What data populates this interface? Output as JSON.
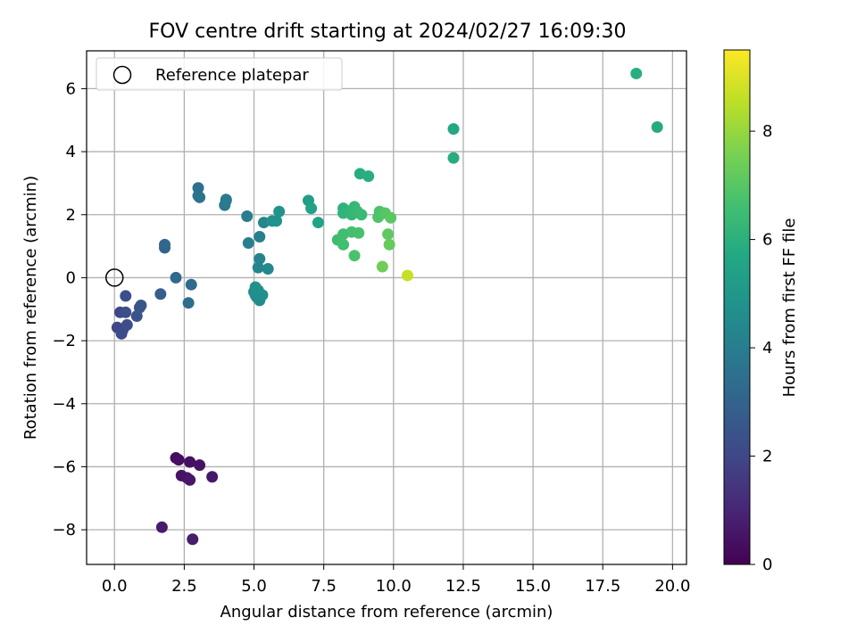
{
  "chart_data": {
    "type": "scatter",
    "title": "FOV centre drift starting at 2024/02/27 16:09:30",
    "xlabel": "Angular distance from reference (arcmin)",
    "ylabel": "Rotation from reference (arcmin)",
    "xlim": [
      -1.0,
      20.5
    ],
    "ylim": [
      -9.1,
      7.2
    ],
    "xticks": [
      0.0,
      2.5,
      5.0,
      7.5,
      10.0,
      12.5,
      15.0,
      17.5,
      20.0
    ],
    "xtick_labels": [
      "0.0",
      "2.5",
      "5.0",
      "7.5",
      "10.0",
      "12.5",
      "15.0",
      "17.5",
      "20.0"
    ],
    "yticks": [
      -8,
      -6,
      -4,
      -2,
      0,
      2,
      4,
      6
    ],
    "ytick_labels": [
      "−8",
      "−6",
      "−4",
      "−2",
      "0",
      "2",
      "4",
      "6"
    ],
    "grid": true,
    "legend": {
      "placement": "top-left",
      "entries": [
        "Reference platepar"
      ]
    },
    "reference_point": {
      "x": 0,
      "y": 0,
      "marker": "hollow-circle"
    },
    "colorbar": {
      "label": "Hours from first FF file",
      "colormap": "viridis",
      "range": [
        0,
        9.5
      ],
      "ticks": [
        0,
        2,
        4,
        6,
        8
      ],
      "tick_labels": [
        "0",
        "2",
        "4",
        "6",
        "8"
      ]
    },
    "series": [
      {
        "colorscale": "viridis",
        "points": [
          {
            "x": 2.2,
            "y": -5.72,
            "c": 0.3
          },
          {
            "x": 2.3,
            "y": -5.78,
            "c": 0.35
          },
          {
            "x": 2.7,
            "y": -5.85,
            "c": 0.4
          },
          {
            "x": 3.05,
            "y": -5.95,
            "c": 0.45
          },
          {
            "x": 2.4,
            "y": -6.28,
            "c": 0.5
          },
          {
            "x": 2.6,
            "y": -6.35,
            "c": 0.55
          },
          {
            "x": 2.7,
            "y": -6.42,
            "c": 0.6
          },
          {
            "x": 3.5,
            "y": -6.32,
            "c": 0.65
          },
          {
            "x": 1.7,
            "y": -7.92,
            "c": 0.7
          },
          {
            "x": 2.8,
            "y": -8.3,
            "c": 0.75
          },
          {
            "x": 0.2,
            "y": -1.1,
            "c": 2.0
          },
          {
            "x": 0.1,
            "y": -1.58,
            "c": 2.05
          },
          {
            "x": 0.3,
            "y": -1.65,
            "c": 2.1
          },
          {
            "x": 0.25,
            "y": -1.78,
            "c": 2.15
          },
          {
            "x": 0.45,
            "y": -1.5,
            "c": 2.2
          },
          {
            "x": 0.4,
            "y": -1.1,
            "c": 2.25
          },
          {
            "x": 0.4,
            "y": -0.58,
            "c": 2.3
          },
          {
            "x": 0.8,
            "y": -1.22,
            "c": 2.4
          },
          {
            "x": 0.9,
            "y": -0.95,
            "c": 2.5
          },
          {
            "x": 0.95,
            "y": -0.88,
            "c": 2.55
          },
          {
            "x": 1.65,
            "y": -0.52,
            "c": 2.8
          },
          {
            "x": 1.8,
            "y": 0.95,
            "c": 3.0
          },
          {
            "x": 1.8,
            "y": 1.05,
            "c": 3.1
          },
          {
            "x": 2.2,
            "y": 0.0,
            "c": 3.2
          },
          {
            "x": 2.75,
            "y": -0.22,
            "c": 3.3
          },
          {
            "x": 2.65,
            "y": -0.8,
            "c": 3.4
          },
          {
            "x": 3.0,
            "y": 2.85,
            "c": 3.5
          },
          {
            "x": 3.0,
            "y": 2.6,
            "c": 3.6
          },
          {
            "x": 3.05,
            "y": 2.55,
            "c": 3.65
          },
          {
            "x": 4.0,
            "y": 2.48,
            "c": 3.8
          },
          {
            "x": 3.95,
            "y": 2.3,
            "c": 3.85
          },
          {
            "x": 4.0,
            "y": 2.45,
            "c": 3.9
          },
          {
            "x": 4.75,
            "y": 1.95,
            "c": 4.0
          },
          {
            "x": 4.8,
            "y": 1.1,
            "c": 4.05
          },
          {
            "x": 5.2,
            "y": 1.3,
            "c": 4.1
          },
          {
            "x": 5.2,
            "y": 0.6,
            "c": 4.2
          },
          {
            "x": 5.15,
            "y": 0.32,
            "c": 4.3
          },
          {
            "x": 5.35,
            "y": 1.75,
            "c": 4.35
          },
          {
            "x": 5.5,
            "y": 0.28,
            "c": 4.4
          },
          {
            "x": 5.0,
            "y": -0.45,
            "c": 4.5
          },
          {
            "x": 5.05,
            "y": -0.55,
            "c": 4.55
          },
          {
            "x": 5.1,
            "y": -0.62,
            "c": 4.6
          },
          {
            "x": 5.2,
            "y": -0.72,
            "c": 4.65
          },
          {
            "x": 5.3,
            "y": -0.55,
            "c": 4.7
          },
          {
            "x": 5.15,
            "y": -0.4,
            "c": 4.7
          },
          {
            "x": 5.05,
            "y": -0.3,
            "c": 4.75
          },
          {
            "x": 5.65,
            "y": 1.8,
            "c": 4.75
          },
          {
            "x": 5.8,
            "y": 1.8,
            "c": 4.8
          },
          {
            "x": 5.9,
            "y": 2.1,
            "c": 4.85
          },
          {
            "x": 6.95,
            "y": 2.45,
            "c": 5.3
          },
          {
            "x": 7.05,
            "y": 2.2,
            "c": 5.4
          },
          {
            "x": 7.3,
            "y": 1.75,
            "c": 5.5
          },
          {
            "x": 8.8,
            "y": 3.3,
            "c": 5.9
          },
          {
            "x": 9.1,
            "y": 3.22,
            "c": 5.95
          },
          {
            "x": 8.2,
            "y": 2.2,
            "c": 6.1
          },
          {
            "x": 8.2,
            "y": 2.05,
            "c": 6.15
          },
          {
            "x": 8.45,
            "y": 2.12,
            "c": 6.2
          },
          {
            "x": 8.5,
            "y": 2.0,
            "c": 6.25
          },
          {
            "x": 8.6,
            "y": 2.25,
            "c": 6.3
          },
          {
            "x": 8.7,
            "y": 2.1,
            "c": 6.35
          },
          {
            "x": 8.85,
            "y": 2.0,
            "c": 6.4
          },
          {
            "x": 8.0,
            "y": 1.2,
            "c": 6.5
          },
          {
            "x": 8.2,
            "y": 1.38,
            "c": 6.55
          },
          {
            "x": 8.2,
            "y": 1.05,
            "c": 6.6
          },
          {
            "x": 8.5,
            "y": 1.45,
            "c": 6.65
          },
          {
            "x": 8.75,
            "y": 1.42,
            "c": 6.7
          },
          {
            "x": 8.6,
            "y": 0.7,
            "c": 6.75
          },
          {
            "x": 9.5,
            "y": 2.1,
            "c": 6.8
          },
          {
            "x": 9.45,
            "y": 1.92,
            "c": 6.85
          },
          {
            "x": 9.7,
            "y": 2.05,
            "c": 6.95
          },
          {
            "x": 9.9,
            "y": 1.9,
            "c": 7.05
          },
          {
            "x": 9.8,
            "y": 1.38,
            "c": 7.15
          },
          {
            "x": 9.85,
            "y": 1.05,
            "c": 7.25
          },
          {
            "x": 9.6,
            "y": 0.35,
            "c": 7.4
          },
          {
            "x": 10.5,
            "y": 0.07,
            "c": 8.7
          },
          {
            "x": 12.15,
            "y": 4.72,
            "c": 5.7
          },
          {
            "x": 12.15,
            "y": 3.8,
            "c": 5.85
          },
          {
            "x": 18.7,
            "y": 6.48,
            "c": 5.95
          },
          {
            "x": 19.45,
            "y": 4.78,
            "c": 5.8
          }
        ]
      }
    ]
  }
}
